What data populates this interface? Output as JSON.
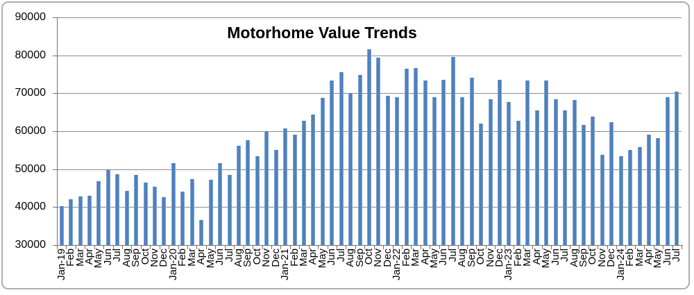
{
  "chart_data": {
    "type": "bar",
    "title": "Motorhome Value Trends",
    "xlabel": "",
    "ylabel": "",
    "ylim": [
      30000,
      90000
    ],
    "y_tick_step": 10000,
    "y_tick_labels": [
      "90000",
      "80000",
      "70000",
      "60000",
      "50000",
      "40000",
      "30000"
    ],
    "grid": true,
    "legend": "none",
    "categories": [
      "Jan-19",
      "Feb",
      "Mar",
      "Apr",
      "May",
      "Jun",
      "Jul",
      "Aug",
      "Sep",
      "Oct",
      "Nov",
      "Dec",
      "Jan-20",
      "Feb",
      "Mar",
      "Apr",
      "May",
      "Jun",
      "Jul",
      "Aug",
      "Sep",
      "Oct",
      "Nov",
      "Dec",
      "Jan-21",
      "Feb",
      "Mar",
      "Apr",
      "May",
      "Jun",
      "Jul",
      "Aug",
      "Sep",
      "Oct",
      "Nov",
      "Dec",
      "Jan-22",
      "Feb",
      "Mar",
      "Apr",
      "May",
      "Jun",
      "Jul",
      "Aug",
      "Sep",
      "Oct",
      "Nov",
      "Dec",
      "Jan-23",
      "Feb",
      "Mar",
      "Apr",
      "May",
      "Jun",
      "Jul",
      "Aug",
      "Sep",
      "Oct",
      "Nov",
      "Dec",
      "Jan-24",
      "Feb",
      "Mar",
      "Apr",
      "May",
      "Jun",
      "Jul"
    ],
    "values": [
      40200,
      42000,
      42800,
      42900,
      46800,
      49800,
      48700,
      44300,
      48400,
      46400,
      45400,
      42600,
      51500,
      44000,
      47400,
      36500,
      47200,
      51600,
      48500,
      56200,
      57600,
      53500,
      60000,
      55000,
      60700,
      59000,
      62800,
      64300,
      68700,
      73300,
      75600,
      70000,
      74900,
      81500,
      79400,
      69300,
      69000,
      76500,
      76600,
      73400,
      68900,
      73600,
      79600,
      69000,
      74000,
      62100,
      68500,
      73500,
      67700,
      62700,
      73300,
      65500,
      73400,
      68400,
      65500,
      68200,
      61600,
      63900,
      53700,
      62400,
      53400,
      55000,
      55800,
      59100,
      58200,
      68900,
      70400
    ],
    "colors": {
      "bar": "#4F81BD",
      "bar_edge": "#7BA3D0",
      "gridline": "#8A8A8A",
      "axis": "#707070",
      "text": "#000000",
      "chart_border": "#ADADAD",
      "background": "#FFFFFF"
    }
  }
}
